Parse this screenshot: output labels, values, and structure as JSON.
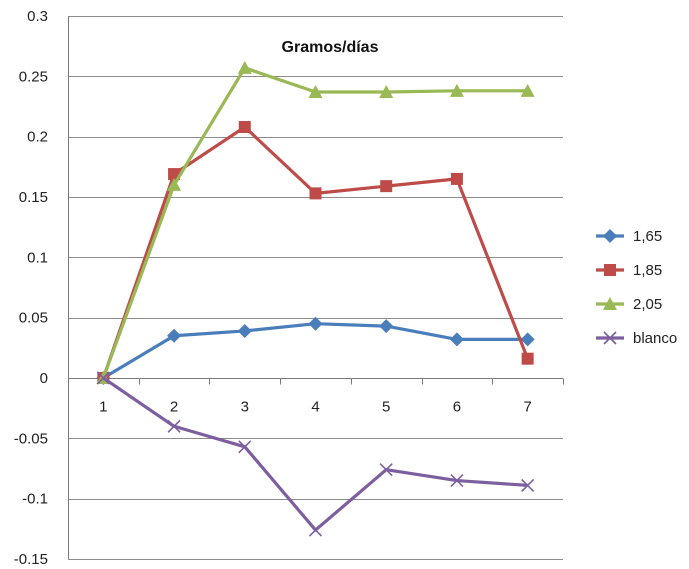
{
  "chart_data": {
    "type": "line",
    "title": "Gramos/días",
    "xlabel": "",
    "ylabel": "",
    "categories": [
      "1",
      "2",
      "3",
      "4",
      "5",
      "6",
      "7"
    ],
    "ylim": [
      -0.15,
      0.3
    ],
    "yticks": [
      0.3,
      0.25,
      0.2,
      0.15,
      0.1,
      0.05,
      0,
      -0.05,
      -0.1,
      -0.15
    ],
    "ytick_labels": [
      "0.3",
      "0.25",
      "0.2",
      "0.15",
      "0.1",
      "0.05",
      "0",
      "-0.05",
      "-0.1",
      "-0.15"
    ],
    "grid": true,
    "legend_position": "right",
    "series": [
      {
        "name": "1,65",
        "color": "#4a7ebb",
        "marker": "diamond",
        "values": [
          0,
          0.035,
          0.039,
          0.045,
          0.043,
          0.032,
          0.032
        ]
      },
      {
        "name": "1,85",
        "color": "#be4b48",
        "marker": "square",
        "values": [
          0,
          0.169,
          0.208,
          0.153,
          0.159,
          0.165,
          0.016
        ]
      },
      {
        "name": "2,05",
        "color": "#98b954",
        "marker": "triangle",
        "values": [
          0,
          0.16,
          0.257,
          0.237,
          0.237,
          0.238,
          0.238
        ]
      },
      {
        "name": "blanco",
        "color": "#7d5fa0",
        "marker": "cross",
        "values": [
          0,
          -0.04,
          -0.057,
          -0.126,
          -0.076,
          -0.085,
          -0.089
        ]
      }
    ]
  }
}
